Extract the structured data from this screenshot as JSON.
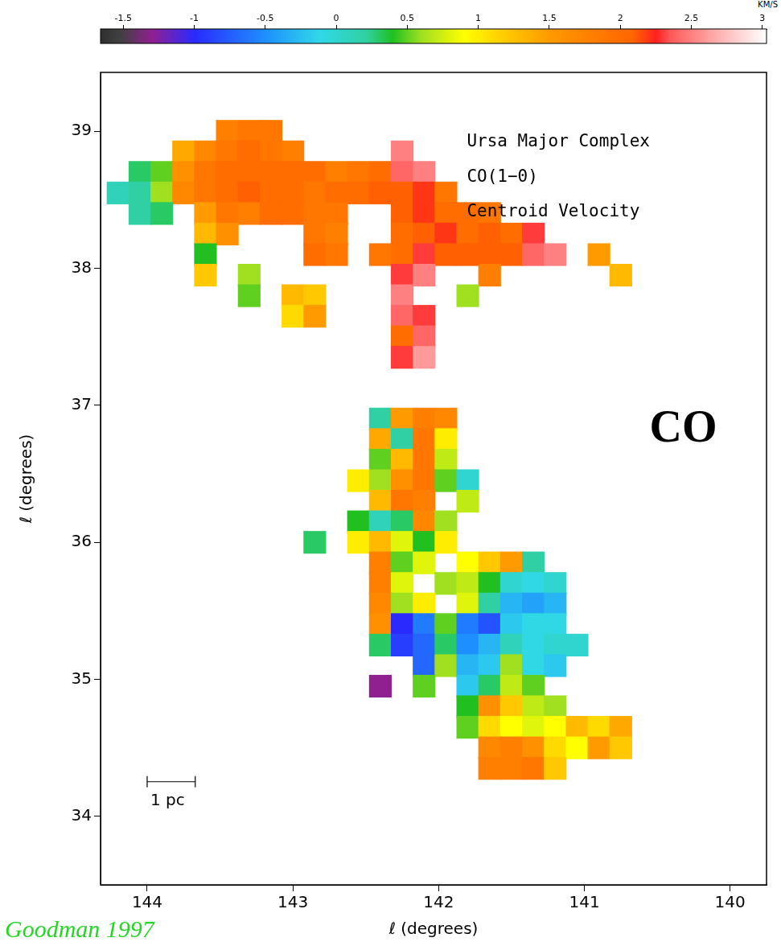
{
  "chart_data": {
    "type": "scatter",
    "title": "Ursa Major Complex",
    "subtitle": [
      "CO(1−0)",
      "Centroid Velocity"
    ],
    "panel_label": "CO",
    "source": "Goodman 1997",
    "x_label": "ℓ (degrees)",
    "y_label": "ℓ (degrees)",
    "xlim": [
      144.32,
      139.75
    ],
    "xticks": [
      144,
      143,
      142,
      141,
      140
    ],
    "ylim": [
      33.5,
      39.43
    ],
    "yticks": [
      34,
      35,
      36,
      37,
      38,
      39
    ],
    "grid": false,
    "marker": "square",
    "cell_size": 0.15,
    "scale_bar": {
      "label": "1 pc",
      "length": 0.33
    },
    "colorbar": {
      "label": "KM/S",
      "range": [
        -1.66,
        3.03
      ],
      "ticks": [
        -1.5,
        -1,
        -0.5,
        0,
        0.5,
        1,
        1.5,
        2,
        2.5,
        3
      ]
    },
    "cells": [
      [
        143.45,
        39.0,
        1.8
      ],
      [
        143.3,
        39.0,
        1.9
      ],
      [
        143.15,
        39.0,
        1.9
      ],
      [
        143.75,
        38.85,
        1.4
      ],
      [
        143.6,
        38.85,
        1.7
      ],
      [
        143.45,
        38.85,
        1.9
      ],
      [
        143.3,
        38.85,
        2.0
      ],
      [
        143.15,
        38.85,
        1.9
      ],
      [
        143.0,
        38.85,
        1.8
      ],
      [
        142.25,
        38.85,
        2.5
      ],
      [
        144.05,
        38.7,
        0.3
      ],
      [
        143.9,
        38.7,
        0.5
      ],
      [
        143.75,
        38.7,
        1.6
      ],
      [
        143.6,
        38.7,
        1.9
      ],
      [
        143.45,
        38.7,
        2.0
      ],
      [
        143.3,
        38.7,
        2.0
      ],
      [
        143.15,
        38.7,
        2.0
      ],
      [
        143.0,
        38.7,
        2.0
      ],
      [
        142.85,
        38.7,
        2.0
      ],
      [
        142.7,
        38.7,
        1.8
      ],
      [
        142.55,
        38.7,
        1.9
      ],
      [
        142.4,
        38.7,
        2.0
      ],
      [
        142.25,
        38.7,
        2.4
      ],
      [
        142.1,
        38.7,
        2.5
      ],
      [
        144.2,
        38.55,
        0.1
      ],
      [
        144.05,
        38.55,
        0.2
      ],
      [
        143.9,
        38.55,
        0.6
      ],
      [
        143.75,
        38.55,
        1.7
      ],
      [
        143.6,
        38.55,
        1.9
      ],
      [
        143.45,
        38.55,
        2.0
      ],
      [
        143.3,
        38.55,
        2.1
      ],
      [
        143.15,
        38.55,
        2.0
      ],
      [
        143.0,
        38.55,
        2.0
      ],
      [
        142.85,
        38.55,
        1.9
      ],
      [
        142.7,
        38.55,
        2.0
      ],
      [
        142.55,
        38.55,
        2.0
      ],
      [
        142.4,
        38.55,
        2.1
      ],
      [
        142.25,
        38.55,
        2.1
      ],
      [
        142.1,
        38.55,
        2.2
      ],
      [
        141.95,
        38.55,
        1.9
      ],
      [
        144.05,
        38.4,
        0.2
      ],
      [
        143.9,
        38.4,
        0.3
      ],
      [
        143.6,
        38.4,
        1.5
      ],
      [
        143.45,
        38.4,
        1.9
      ],
      [
        143.3,
        38.4,
        1.8
      ],
      [
        143.15,
        38.4,
        2.0
      ],
      [
        143.0,
        38.4,
        2.0
      ],
      [
        142.85,
        38.4,
        1.9
      ],
      [
        142.7,
        38.4,
        1.9
      ],
      [
        142.25,
        38.4,
        2.1
      ],
      [
        142.1,
        38.4,
        2.2
      ],
      [
        141.95,
        38.4,
        2.0
      ],
      [
        141.8,
        38.4,
        2.0
      ],
      [
        141.65,
        38.4,
        1.9
      ],
      [
        143.6,
        38.25,
        1.3
      ],
      [
        143.45,
        38.25,
        1.6
      ],
      [
        142.85,
        38.25,
        1.9
      ],
      [
        142.7,
        38.25,
        1.8
      ],
      [
        142.25,
        38.25,
        2.0
      ],
      [
        142.1,
        38.25,
        2.1
      ],
      [
        141.95,
        38.25,
        2.2
      ],
      [
        141.8,
        38.25,
        2.0
      ],
      [
        141.65,
        38.25,
        2.1
      ],
      [
        141.5,
        38.25,
        2.0
      ],
      [
        141.35,
        38.25,
        2.3
      ],
      [
        143.6,
        38.1,
        0.4
      ],
      [
        142.85,
        38.1,
        2.0
      ],
      [
        142.7,
        38.1,
        1.9
      ],
      [
        142.4,
        38.1,
        1.9
      ],
      [
        142.25,
        38.1,
        2.0
      ],
      [
        142.1,
        38.1,
        2.3
      ],
      [
        141.95,
        38.1,
        2.1
      ],
      [
        141.8,
        38.1,
        2.1
      ],
      [
        141.65,
        38.1,
        2.1
      ],
      [
        141.5,
        38.1,
        2.1
      ],
      [
        141.35,
        38.1,
        2.4
      ],
      [
        141.2,
        38.1,
        2.5
      ],
      [
        140.9,
        38.1,
        1.5
      ],
      [
        143.6,
        37.95,
        1.2
      ],
      [
        143.3,
        37.95,
        0.6
      ],
      [
        142.25,
        37.95,
        2.3
      ],
      [
        142.1,
        37.95,
        2.5
      ],
      [
        141.65,
        37.95,
        1.8
      ],
      [
        140.75,
        37.95,
        1.3
      ],
      [
        143.3,
        37.8,
        0.5
      ],
      [
        143.0,
        37.8,
        1.3
      ],
      [
        142.85,
        37.8,
        1.2
      ],
      [
        142.25,
        37.8,
        2.5
      ],
      [
        141.8,
        37.8,
        0.6
      ],
      [
        143.0,
        37.65,
        1.1
      ],
      [
        142.85,
        37.65,
        1.5
      ],
      [
        142.25,
        37.65,
        2.4
      ],
      [
        142.1,
        37.65,
        2.3
      ],
      [
        142.25,
        37.5,
        2.0
      ],
      [
        142.1,
        37.5,
        2.4
      ],
      [
        142.25,
        37.35,
        2.3
      ],
      [
        142.1,
        37.35,
        2.6
      ],
      [
        142.4,
        36.9,
        0.2
      ],
      [
        142.25,
        36.9,
        1.5
      ],
      [
        142.1,
        36.9,
        1.8
      ],
      [
        141.95,
        36.9,
        1.7
      ],
      [
        142.4,
        36.75,
        1.4
      ],
      [
        142.25,
        36.75,
        0.2
      ],
      [
        142.1,
        36.75,
        1.9
      ],
      [
        141.95,
        36.75,
        1.0
      ],
      [
        142.4,
        36.6,
        0.5
      ],
      [
        142.25,
        36.6,
        1.3
      ],
      [
        142.1,
        36.6,
        1.9
      ],
      [
        141.95,
        36.6,
        0.7
      ],
      [
        142.55,
        36.45,
        1.0
      ],
      [
        142.4,
        36.45,
        0.6
      ],
      [
        142.25,
        36.45,
        1.6
      ],
      [
        142.1,
        36.45,
        1.9
      ],
      [
        141.95,
        36.45,
        0.5
      ],
      [
        141.8,
        36.45,
        0.0
      ],
      [
        142.4,
        36.3,
        1.3
      ],
      [
        142.25,
        36.3,
        1.9
      ],
      [
        142.1,
        36.3,
        1.8
      ],
      [
        141.8,
        36.3,
        0.7
      ],
      [
        142.55,
        36.15,
        0.4
      ],
      [
        142.4,
        36.15,
        0.1
      ],
      [
        142.25,
        36.15,
        0.3
      ],
      [
        142.1,
        36.15,
        1.7
      ],
      [
        141.95,
        36.15,
        0.6
      ],
      [
        142.85,
        36.0,
        0.3
      ],
      [
        142.55,
        36.0,
        1.0
      ],
      [
        142.4,
        36.0,
        1.3
      ],
      [
        142.25,
        36.0,
        0.8
      ],
      [
        142.1,
        36.0,
        0.4
      ],
      [
        141.95,
        36.0,
        1.0
      ],
      [
        142.4,
        35.85,
        1.8
      ],
      [
        142.25,
        35.85,
        0.5
      ],
      [
        142.1,
        35.85,
        0.8
      ],
      [
        141.8,
        35.85,
        0.9
      ],
      [
        141.65,
        35.85,
        1.2
      ],
      [
        141.5,
        35.85,
        1.5
      ],
      [
        141.35,
        35.85,
        0.2
      ],
      [
        142.4,
        35.7,
        1.8
      ],
      [
        142.25,
        35.7,
        0.8
      ],
      [
        141.95,
        35.7,
        0.6
      ],
      [
        141.8,
        35.7,
        0.7
      ],
      [
        141.65,
        35.7,
        0.4
      ],
      [
        141.5,
        35.7,
        0.0
      ],
      [
        141.35,
        35.7,
        -0.1
      ],
      [
        141.2,
        35.7,
        0.0
      ],
      [
        142.4,
        35.55,
        1.7
      ],
      [
        142.25,
        35.55,
        0.6
      ],
      [
        142.1,
        35.55,
        1.0
      ],
      [
        141.8,
        35.55,
        0.8
      ],
      [
        141.65,
        35.55,
        0.2
      ],
      [
        141.5,
        35.55,
        -0.3
      ],
      [
        141.35,
        35.55,
        -0.4
      ],
      [
        141.2,
        35.55,
        -0.3
      ],
      [
        142.4,
        35.4,
        1.6
      ],
      [
        142.25,
        35.4,
        -1.0
      ],
      [
        142.1,
        35.4,
        -0.6
      ],
      [
        141.95,
        35.4,
        0.5
      ],
      [
        141.8,
        35.4,
        -0.6
      ],
      [
        141.65,
        35.4,
        -0.8
      ],
      [
        141.5,
        35.4,
        -0.2
      ],
      [
        141.35,
        35.4,
        -0.1
      ],
      [
        141.2,
        35.4,
        -0.1
      ],
      [
        142.4,
        35.25,
        0.3
      ],
      [
        142.25,
        35.25,
        -0.9
      ],
      [
        142.1,
        35.25,
        -0.7
      ],
      [
        141.95,
        35.25,
        0.3
      ],
      [
        141.8,
        35.25,
        -0.5
      ],
      [
        141.65,
        35.25,
        -0.3
      ],
      [
        141.5,
        35.25,
        0.1
      ],
      [
        141.35,
        35.25,
        -0.1
      ],
      [
        141.2,
        35.25,
        0.0
      ],
      [
        141.05,
        35.25,
        0.0
      ],
      [
        142.1,
        35.1,
        -0.7
      ],
      [
        141.95,
        35.1,
        0.6
      ],
      [
        141.8,
        35.1,
        -0.3
      ],
      [
        141.65,
        35.1,
        -0.2
      ],
      [
        141.5,
        35.1,
        0.6
      ],
      [
        141.35,
        35.1,
        -0.1
      ],
      [
        141.2,
        35.1,
        -0.2
      ],
      [
        142.4,
        34.95,
        -1.3
      ],
      [
        142.1,
        34.95,
        0.5
      ],
      [
        141.8,
        34.95,
        -0.2
      ],
      [
        141.65,
        34.95,
        0.3
      ],
      [
        141.5,
        34.95,
        0.7
      ],
      [
        141.35,
        34.95,
        0.5
      ],
      [
        141.8,
        34.8,
        0.4
      ],
      [
        141.65,
        34.8,
        1.6
      ],
      [
        141.5,
        34.8,
        1.2
      ],
      [
        141.35,
        34.8,
        0.7
      ],
      [
        141.2,
        34.8,
        0.6
      ],
      [
        141.8,
        34.65,
        0.5
      ],
      [
        141.65,
        34.65,
        1.1
      ],
      [
        141.5,
        34.65,
        0.9
      ],
      [
        141.35,
        34.65,
        0.8
      ],
      [
        141.2,
        34.65,
        0.9
      ],
      [
        141.05,
        34.65,
        1.3
      ],
      [
        140.9,
        34.65,
        1.1
      ],
      [
        140.75,
        34.65,
        1.4
      ],
      [
        141.65,
        34.5,
        1.7
      ],
      [
        141.5,
        34.5,
        1.8
      ],
      [
        141.35,
        34.5,
        1.6
      ],
      [
        141.2,
        34.5,
        1.1
      ],
      [
        141.05,
        34.5,
        0.9
      ],
      [
        140.9,
        34.5,
        1.5
      ],
      [
        140.75,
        34.5,
        1.2
      ],
      [
        141.65,
        34.35,
        1.8
      ],
      [
        141.5,
        34.35,
        1.8
      ],
      [
        141.35,
        34.35,
        1.9
      ],
      [
        141.2,
        34.35,
        1.2
      ]
    ]
  }
}
